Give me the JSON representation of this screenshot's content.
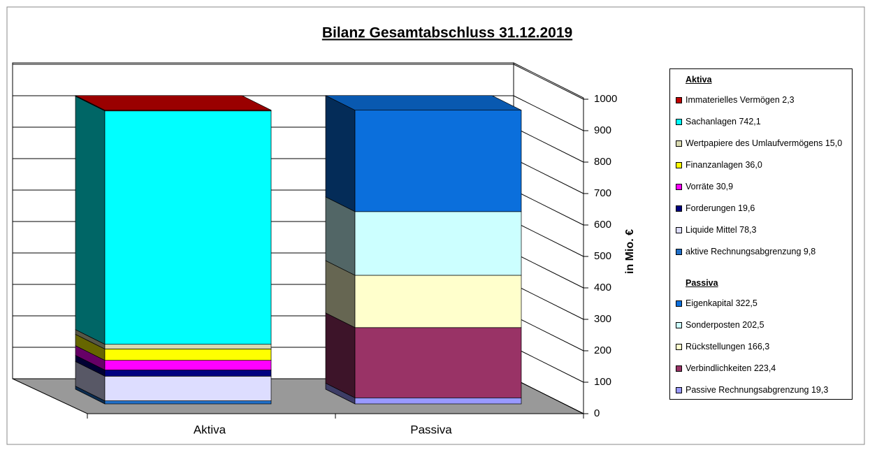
{
  "chart_data": {
    "type": "stacked_bar_3d",
    "title": "Bilanz Gesamtabschluss 31.12.2019",
    "categories": [
      "Aktiva",
      "Passiva"
    ],
    "y_label": "in Mio. €",
    "ylim": [
      0,
      1000
    ],
    "yticks": [
      0,
      100,
      200,
      300,
      400,
      500,
      600,
      700,
      800,
      900,
      1000
    ],
    "grid": true,
    "legend": "right",
    "series": [
      {
        "name": "Immaterielles Vermögen 2,3",
        "color": "#c00000",
        "values": [
          2.3,
          null
        ]
      },
      {
        "name": "Sachanlagen 742,1",
        "color": "#00ffff",
        "values": [
          742.1,
          null
        ]
      },
      {
        "name": "Wertpapiere des Umlaufvermögens 15,0",
        "color": "#d9d9b0",
        "values": [
          15.0,
          null
        ]
      },
      {
        "name": "Finanzanlagen 36,0",
        "color": "#ffff00",
        "values": [
          36.0,
          null
        ]
      },
      {
        "name": "Vorräte 30,9",
        "color": "#ff00ff",
        "values": [
          30.9,
          null
        ]
      },
      {
        "name": "Forderungen 19,6",
        "color": "#000080",
        "values": [
          19.6,
          null
        ]
      },
      {
        "name": "Liquide Mittel 78,3",
        "color": "#ddddff",
        "values": [
          78.3,
          null
        ]
      },
      {
        "name": "aktive Rechnungsabgrenzung 9,8",
        "color": "#1f6fc8",
        "values": [
          9.8,
          null
        ]
      },
      {
        "name": "Eigenkapital 322,5",
        "color": "#0b6fdc",
        "values": [
          null,
          322.5
        ]
      },
      {
        "name": "Sonderposten 202,5",
        "color": "#ccffff",
        "values": [
          null,
          202.5
        ]
      },
      {
        "name": "Rückstellungen 166,3",
        "color": "#ffffcc",
        "values": [
          null,
          166.3
        ]
      },
      {
        "name": "Verbindlichkeiten 223,4",
        "color": "#993366",
        "values": [
          null,
          223.4
        ]
      },
      {
        "name": "Passive Rechnungsabgrenzung 19,3",
        "color": "#9999ff",
        "values": [
          null,
          19.3
        ]
      }
    ]
  }
}
